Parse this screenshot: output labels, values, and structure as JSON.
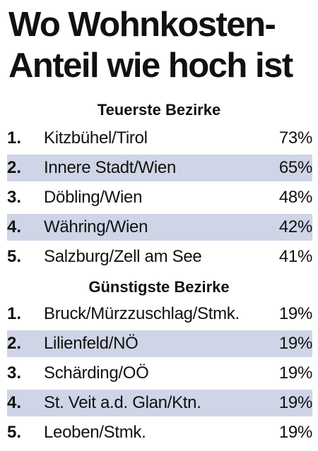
{
  "title": {
    "line1": "Wo Wohnkosten-",
    "line2": "Anteil wie hoch ist"
  },
  "shade_color": "#cfd5e6",
  "chart_data": [
    {
      "type": "table",
      "title": "Teuerste Bezirke",
      "rows": [
        {
          "rank": "1.",
          "name": "Kitzbühel/Tirol",
          "value": "73%"
        },
        {
          "rank": "2.",
          "name": "Innere Stadt/Wien",
          "value": "65%"
        },
        {
          "rank": "3.",
          "name": "Döbling/Wien",
          "value": "48%"
        },
        {
          "rank": "4.",
          "name": "Währing/Wien",
          "value": "42%"
        },
        {
          "rank": "5.",
          "name": "Salzburg/Zell am See",
          "value": "41%"
        }
      ]
    },
    {
      "type": "table",
      "title": "Günstigste Bezirke",
      "rows": [
        {
          "rank": "1.",
          "name": "Bruck/Mürzzuschlag/Stmk.",
          "value": "19%"
        },
        {
          "rank": "2.",
          "name": "Lilienfeld/NÖ",
          "value": "19%"
        },
        {
          "rank": "3.",
          "name": "Schärding/OÖ",
          "value": "19%"
        },
        {
          "rank": "4.",
          "name": "St. Veit a.d. Glan/Ktn.",
          "value": "19%"
        },
        {
          "rank": "5.",
          "name": "Leoben/Stmk.",
          "value": "19%"
        }
      ]
    }
  ]
}
